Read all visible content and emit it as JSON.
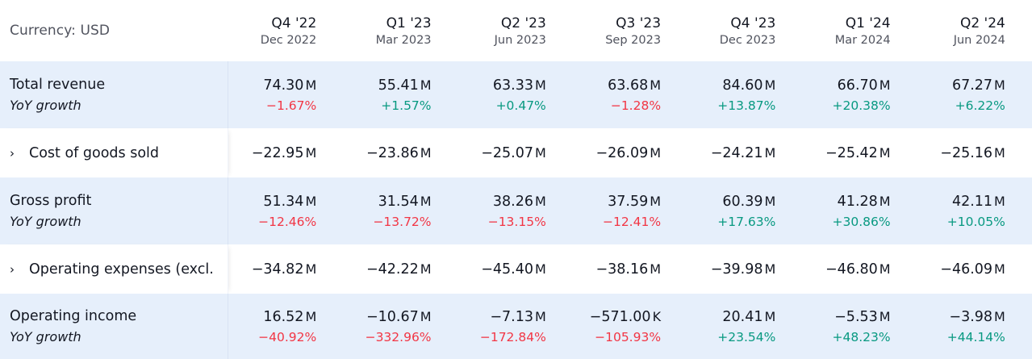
{
  "header": {
    "currency_label": "Currency: USD",
    "periods": [
      {
        "quarter": "Q4 '22",
        "date": "Dec 2022"
      },
      {
        "quarter": "Q1 '23",
        "date": "Mar 2023"
      },
      {
        "quarter": "Q2 '23",
        "date": "Jun 2023"
      },
      {
        "quarter": "Q3 '23",
        "date": "Sep 2023"
      },
      {
        "quarter": "Q4 '23",
        "date": "Dec 2023"
      },
      {
        "quarter": "Q1 '24",
        "date": "Mar 2024"
      },
      {
        "quarter": "Q2 '24",
        "date": "Jun 2024"
      }
    ]
  },
  "rows": [
    {
      "label": "Total revenue",
      "sub_label": "YoY growth",
      "values": [
        {
          "num": "74.30",
          "unit": "M",
          "pct": "−1.67%",
          "dir": "neg"
        },
        {
          "num": "55.41",
          "unit": "M",
          "pct": "+1.57%",
          "dir": "pos"
        },
        {
          "num": "63.33",
          "unit": "M",
          "pct": "+0.47%",
          "dir": "pos"
        },
        {
          "num": "63.68",
          "unit": "M",
          "pct": "−1.28%",
          "dir": "neg"
        },
        {
          "num": "84.60",
          "unit": "M",
          "pct": "+13.87%",
          "dir": "pos"
        },
        {
          "num": "66.70",
          "unit": "M",
          "pct": "+20.38%",
          "dir": "pos"
        },
        {
          "num": "67.27",
          "unit": "M",
          "pct": "+6.22%",
          "dir": "pos"
        }
      ]
    },
    {
      "label": "Cost of goods sold",
      "expand_icon": "chevron-right-icon",
      "values": [
        {
          "num": "−22.95",
          "unit": "M"
        },
        {
          "num": "−23.86",
          "unit": "M"
        },
        {
          "num": "−25.07",
          "unit": "M"
        },
        {
          "num": "−26.09",
          "unit": "M"
        },
        {
          "num": "−24.21",
          "unit": "M"
        },
        {
          "num": "−25.42",
          "unit": "M"
        },
        {
          "num": "−25.16",
          "unit": "M"
        }
      ]
    },
    {
      "label": "Gross profit",
      "sub_label": "YoY growth",
      "values": [
        {
          "num": "51.34",
          "unit": "M",
          "pct": "−12.46%",
          "dir": "neg"
        },
        {
          "num": "31.54",
          "unit": "M",
          "pct": "−13.72%",
          "dir": "neg"
        },
        {
          "num": "38.26",
          "unit": "M",
          "pct": "−13.15%",
          "dir": "neg"
        },
        {
          "num": "37.59",
          "unit": "M",
          "pct": "−12.41%",
          "dir": "neg"
        },
        {
          "num": "60.39",
          "unit": "M",
          "pct": "+17.63%",
          "dir": "pos"
        },
        {
          "num": "41.28",
          "unit": "M",
          "pct": "+30.86%",
          "dir": "pos"
        },
        {
          "num": "42.11",
          "unit": "M",
          "pct": "+10.05%",
          "dir": "pos"
        }
      ]
    },
    {
      "label": "Operating expenses (excl.",
      "expand_icon": "chevron-right-icon",
      "values": [
        {
          "num": "−34.82",
          "unit": "M"
        },
        {
          "num": "−42.22",
          "unit": "M"
        },
        {
          "num": "−45.40",
          "unit": "M"
        },
        {
          "num": "−38.16",
          "unit": "M"
        },
        {
          "num": "−39.98",
          "unit": "M"
        },
        {
          "num": "−46.80",
          "unit": "M"
        },
        {
          "num": "−46.09",
          "unit": "M"
        }
      ]
    },
    {
      "label": "Operating income",
      "sub_label": "YoY growth",
      "values": [
        {
          "num": "16.52",
          "unit": "M",
          "pct": "−40.92%",
          "dir": "neg"
        },
        {
          "num": "−10.67",
          "unit": "M",
          "pct": "−332.96%",
          "dir": "neg"
        },
        {
          "num": "−7.13",
          "unit": "M",
          "pct": "−172.84%",
          "dir": "neg"
        },
        {
          "num": "−571.00",
          "unit": "K",
          "pct": "−105.93%",
          "dir": "neg"
        },
        {
          "num": "20.41",
          "unit": "M",
          "pct": "+23.54%",
          "dir": "pos"
        },
        {
          "num": "−5.53",
          "unit": "M",
          "pct": "+48.23%",
          "dir": "pos"
        },
        {
          "num": "−3.98",
          "unit": "M",
          "pct": "+44.14%",
          "dir": "pos"
        }
      ]
    }
  ],
  "colors": {
    "positive": "#089981",
    "negative": "#f23645",
    "row_highlight": "#e6effb"
  }
}
